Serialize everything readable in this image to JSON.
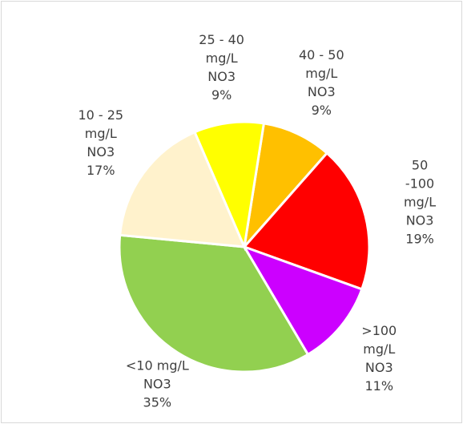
{
  "chart_data": {
    "type": "pie",
    "categories": [
      "40 - 50\nmg/L\nNO3",
      "50 -100\nmg/L\nNO3",
      ">100\nmg/L\nNO3",
      "<10 mg/L\nNO3",
      "10 - 25\nmg/L\nNO3",
      "25 - 40\nmg/L\nNO3"
    ],
    "values": [
      9,
      19,
      11,
      35,
      17,
      9
    ],
    "value_labels": [
      "9%",
      "19%",
      "11%",
      "35%",
      "17%",
      "9%"
    ],
    "colors": [
      "#ffc000",
      "#ff0000",
      "#cc00ff",
      "#92d050",
      "#fff2cc",
      "#ffff00"
    ]
  }
}
